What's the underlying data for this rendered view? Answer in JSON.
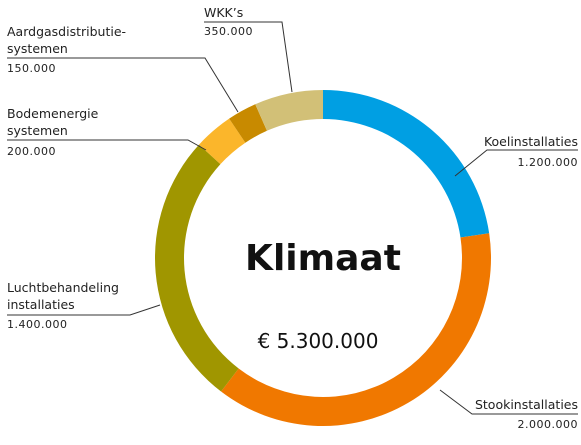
{
  "chart_data": {
    "type": "donut",
    "title": "Klimaat",
    "subtitle": "€ 5.300.000",
    "categories": [
      "Koelinstallaties",
      "Stookinstallaties",
      "Luchtbehandeling\ninstallaties",
      "Bodemenergie\nsystemen",
      "Aardgasdistributie-\nsystemen",
      "WKK’s"
    ],
    "values": [
      1200000,
      2000000,
      1400000,
      200000,
      150000,
      350000
    ],
    "value_labels": [
      "1.200.000",
      "2.000.000",
      "1.400.000",
      "200.000",
      "150.000",
      "350.000"
    ],
    "colors": [
      "#009fe3",
      "#f07800",
      "#a09600",
      "#fbb62b",
      "#c88a00",
      "#d2c077"
    ]
  }
}
